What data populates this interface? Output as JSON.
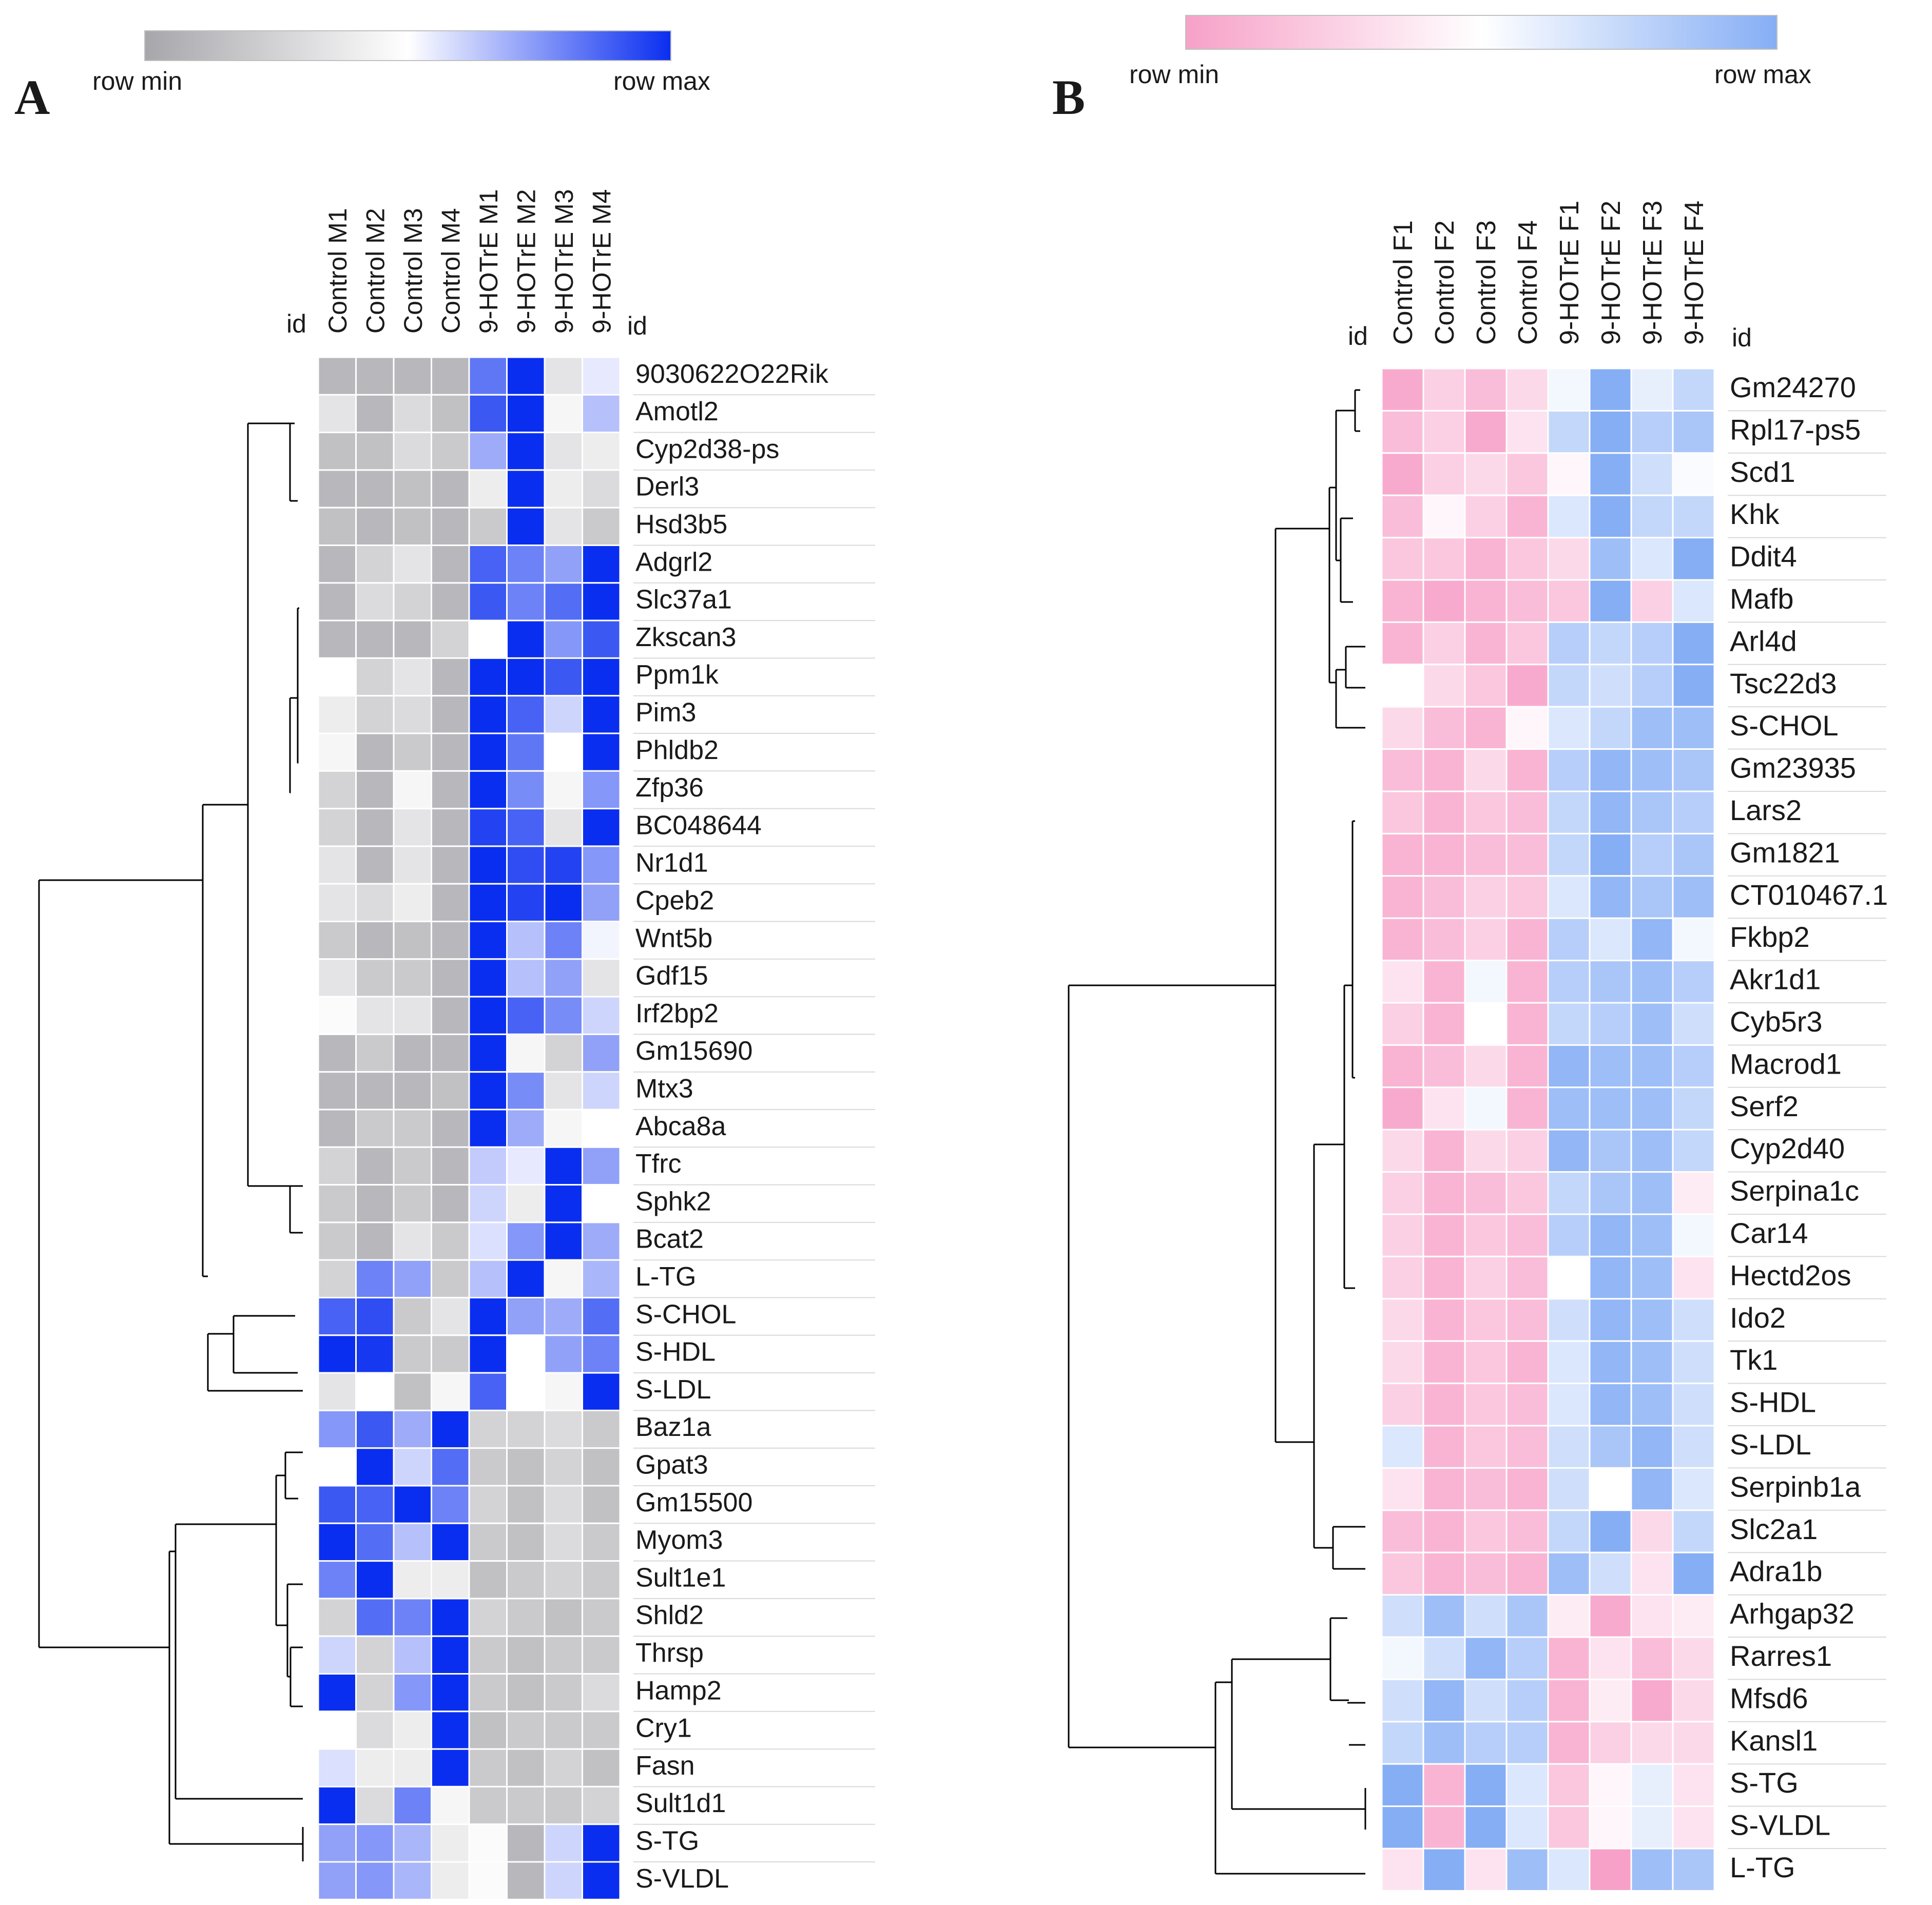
{
  "chart_data": [
    {
      "type": "heatmap",
      "panel": "A",
      "title": "",
      "color_scale": {
        "min_color": "#a6a6ab",
        "mid_color": "#ffffff",
        "max_color": "#0a2ef0",
        "min_label": "row min",
        "max_label": "row max"
      },
      "id_label": "id",
      "columns": [
        "Control M1",
        "Control M2",
        "Control M3",
        "Control M4",
        "9-HOTrE M1",
        "9-HOTrE M2",
        "9-HOTrE M3",
        "9-HOTrE M4"
      ],
      "rows": [
        "9030622O22Rik",
        "Amotl2",
        "Cyp2d38-ps",
        "Derl3",
        "Hsd3b5",
        "Adgrl2",
        "Slc37a1",
        "Zkscan3",
        "Ppm1k",
        "Pim3",
        "Phldb2",
        "Zfp36",
        "BC048644",
        "Nr1d1",
        "Cpeb2",
        "Wnt5b",
        "Gdf15",
        "Irf2bp2",
        "Gm15690",
        "Mtx3",
        "Abca8a",
        "Tfrc",
        "Sphk2",
        "Bcat2",
        "L-TG",
        "S-CHOL",
        "S-HDL",
        "S-LDL",
        "Baz1a",
        "Gpat3",
        "Gm15500",
        "Myom3",
        "Sult1e1",
        "Shld2",
        "Thrsp",
        "Hamp2",
        "Cry1",
        "Fasn",
        "Sult1d1",
        "S-TG",
        "S-VLDL"
      ],
      "values": [
        [
          -0.8,
          -0.8,
          -0.8,
          -0.8,
          0.65,
          1,
          -0.3,
          0.1
        ],
        [
          -0.3,
          -0.8,
          -0.4,
          -0.7,
          0.8,
          1,
          -0.1,
          0.3
        ],
        [
          -0.7,
          -0.7,
          -0.4,
          -0.6,
          0.4,
          1,
          -0.3,
          -0.2
        ],
        [
          -0.8,
          -0.8,
          -0.7,
          -0.8,
          -0.2,
          1,
          -0.2,
          -0.4
        ],
        [
          -0.7,
          -0.8,
          -0.7,
          -0.8,
          -0.6,
          1,
          -0.3,
          -0.6
        ],
        [
          -0.8,
          -0.5,
          -0.3,
          -0.8,
          0.75,
          0.6,
          0.45,
          1
        ],
        [
          -0.8,
          -0.4,
          -0.5,
          -0.8,
          0.8,
          0.6,
          0.7,
          1
        ],
        [
          -0.8,
          -0.8,
          -0.8,
          -0.5,
          0,
          1,
          0.5,
          0.8
        ],
        [
          0,
          -0.5,
          -0.3,
          -0.8,
          1,
          1,
          0.8,
          1
        ],
        [
          -0.2,
          -0.5,
          -0.4,
          -0.8,
          1,
          0.75,
          0.2,
          1
        ],
        [
          -0.1,
          -0.8,
          -0.6,
          -0.8,
          1,
          0.65,
          0,
          1
        ],
        [
          -0.5,
          -0.8,
          -0.1,
          -0.8,
          1,
          0.55,
          -0.1,
          0.5
        ],
        [
          -0.5,
          -0.8,
          -0.3,
          -0.8,
          0.9,
          0.75,
          -0.3,
          1
        ],
        [
          -0.3,
          -0.8,
          -0.3,
          -0.8,
          1,
          0.85,
          0.9,
          0.5
        ],
        [
          -0.3,
          -0.4,
          -0.2,
          -0.8,
          1,
          0.9,
          1,
          0.45
        ],
        [
          -0.6,
          -0.8,
          -0.7,
          -0.8,
          1,
          0.3,
          0.6,
          0.05
        ],
        [
          -0.3,
          -0.6,
          -0.6,
          -0.8,
          1,
          0.3,
          0.45,
          -0.3
        ],
        [
          -0.05,
          -0.3,
          -0.3,
          -0.8,
          1,
          0.75,
          0.55,
          0.2
        ],
        [
          -0.8,
          -0.6,
          -0.8,
          -0.8,
          1,
          -0.1,
          -0.5,
          0.45
        ],
        [
          -0.8,
          -0.8,
          -0.8,
          -0.7,
          1,
          0.55,
          -0.3,
          0.2
        ],
        [
          -0.8,
          -0.6,
          -0.6,
          -0.8,
          1,
          0.4,
          -0.1,
          0
        ],
        [
          -0.5,
          -0.8,
          -0.6,
          -0.8,
          0.25,
          0.1,
          1,
          0.45
        ],
        [
          -0.6,
          -0.8,
          -0.6,
          -0.8,
          0.2,
          -0.2,
          1,
          0
        ],
        [
          -0.6,
          -0.8,
          -0.3,
          -0.6,
          0.15,
          0.5,
          1,
          0.4
        ],
        [
          -0.5,
          0.6,
          0.45,
          -0.6,
          0.3,
          1,
          -0.1,
          0.35
        ],
        [
          0.75,
          0.85,
          -0.6,
          -0.3,
          1,
          0.45,
          0.4,
          0.7
        ],
        [
          1,
          0.95,
          -0.6,
          -0.6,
          1,
          0,
          0.45,
          0.6
        ],
        [
          -0.3,
          0,
          -0.7,
          -0.1,
          0.75,
          0,
          -0.1,
          1
        ],
        [
          0.5,
          0.8,
          0.4,
          1,
          -0.5,
          -0.5,
          -0.4,
          -0.6
        ],
        [
          0,
          1,
          0.2,
          0.7,
          -0.6,
          -0.7,
          -0.5,
          -0.7
        ],
        [
          0.8,
          0.75,
          1,
          0.6,
          -0.5,
          -0.7,
          -0.4,
          -0.7
        ],
        [
          1,
          0.7,
          0.3,
          1,
          -0.6,
          -0.7,
          -0.4,
          -0.6
        ],
        [
          0.6,
          1,
          -0.2,
          -0.2,
          -0.7,
          -0.6,
          -0.5,
          -0.6
        ],
        [
          -0.5,
          0.7,
          0.6,
          1,
          -0.5,
          -0.6,
          -0.7,
          -0.6
        ],
        [
          0.2,
          -0.5,
          0.3,
          1,
          -0.6,
          -0.7,
          -0.6,
          -0.6
        ],
        [
          1,
          -0.5,
          0.5,
          1,
          -0.6,
          -0.7,
          -0.6,
          -0.4
        ],
        [
          0,
          -0.4,
          -0.2,
          1,
          -0.7,
          -0.6,
          -0.6,
          -0.6
        ],
        [
          0.15,
          -0.2,
          -0.2,
          1,
          -0.6,
          -0.7,
          -0.5,
          -0.7
        ],
        [
          1,
          -0.4,
          0.6,
          -0.1,
          -0.6,
          -0.6,
          -0.6,
          -0.5
        ],
        [
          0.45,
          0.5,
          0.35,
          -0.2,
          -0.05,
          -0.8,
          0.2,
          1
        ],
        [
          0.45,
          0.5,
          0.35,
          -0.2,
          -0.05,
          -0.8,
          0.2,
          1
        ]
      ]
    },
    {
      "type": "heatmap",
      "panel": "B",
      "title": "",
      "color_scale": {
        "min_color": "#f7a1c8",
        "mid_color": "#ffffff",
        "max_color": "#86aef5",
        "min_label": "row min",
        "max_label": "row max"
      },
      "id_label": "id",
      "columns": [
        "Control F1",
        "Control F2",
        "Control F3",
        "Control F4",
        "9-HOTrE F1",
        "9-HOTrE F2",
        "9-HOTrE F3",
        "9-HOTrE F4"
      ],
      "rows": [
        "Gm24270",
        "Rpl17-ps5",
        "Scd1",
        "Khk",
        "Ddit4",
        "Mafb",
        "Arl4d",
        "Tsc22d3",
        "S-CHOL",
        "Gm23935",
        "Lars2",
        "Gm1821",
        "CT010467.1",
        "Fkbp2",
        "Akr1d1",
        "Cyb5r3",
        "Macrod1",
        "Serf2",
        "Cyp2d40",
        "Serpina1c",
        "Car14",
        "Hectd2os",
        "Ido2",
        "Tk1",
        "S-HDL",
        "S-LDL",
        "Serpinb1a",
        "Slc2a1",
        "Adra1b",
        "Arhgap32",
        "Rarres1",
        "Mfsd6",
        "Kansl1",
        "S-TG",
        "S-VLDL",
        "L-TG"
      ],
      "values": [
        [
          -0.9,
          -0.5,
          -0.7,
          -0.4,
          0.1,
          1,
          0.2,
          0.5
        ],
        [
          -0.7,
          -0.5,
          -0.9,
          -0.3,
          0.5,
          1,
          0.6,
          0.7
        ],
        [
          -0.9,
          -0.5,
          -0.4,
          -0.6,
          -0.1,
          1,
          0.4,
          0.05
        ],
        [
          -0.7,
          -0.1,
          -0.5,
          -0.8,
          0.3,
          1,
          0.5,
          0.5
        ],
        [
          -0.6,
          -0.6,
          -0.8,
          -0.6,
          -0.4,
          0.8,
          0.3,
          1
        ],
        [
          -0.8,
          -0.9,
          -0.8,
          -0.7,
          -0.6,
          1,
          -0.5,
          0.3
        ],
        [
          -0.8,
          -0.5,
          -0.8,
          -0.6,
          0.6,
          0.5,
          0.6,
          1
        ],
        [
          0,
          -0.4,
          -0.6,
          -0.9,
          0.5,
          0.4,
          0.6,
          1
        ],
        [
          -0.4,
          -0.7,
          -0.8,
          -0.1,
          0.3,
          0.5,
          0.8,
          0.8
        ],
        [
          -0.7,
          -0.8,
          -0.4,
          -0.8,
          0.6,
          0.9,
          0.8,
          0.7
        ],
        [
          -0.6,
          -0.8,
          -0.6,
          -0.7,
          0.5,
          0.9,
          0.7,
          0.6
        ],
        [
          -0.8,
          -0.8,
          -0.7,
          -0.7,
          0.5,
          1,
          0.6,
          0.7
        ],
        [
          -0.8,
          -0.7,
          -0.5,
          -0.6,
          0.3,
          0.9,
          0.7,
          0.8
        ],
        [
          -0.8,
          -0.7,
          -0.5,
          -0.8,
          0.6,
          0.3,
          0.9,
          0.1
        ],
        [
          -0.3,
          -0.8,
          0.1,
          -0.8,
          0.6,
          0.7,
          0.8,
          0.6
        ],
        [
          -0.5,
          -0.8,
          0,
          -0.8,
          0.5,
          0.6,
          0.8,
          0.4
        ],
        [
          -0.8,
          -0.7,
          -0.4,
          -0.8,
          0.9,
          0.8,
          0.8,
          0.6
        ],
        [
          -0.9,
          -0.3,
          0.1,
          -0.8,
          0.8,
          0.8,
          0.8,
          0.5
        ],
        [
          -0.4,
          -0.8,
          -0.4,
          -0.5,
          0.9,
          0.7,
          0.8,
          0.5
        ],
        [
          -0.5,
          -0.8,
          -0.7,
          -0.6,
          0.5,
          0.7,
          0.8,
          -0.2
        ],
        [
          -0.5,
          -0.8,
          -0.6,
          -0.7,
          0.6,
          0.9,
          0.8,
          0.1
        ],
        [
          -0.5,
          -0.8,
          -0.5,
          -0.7,
          0,
          0.9,
          0.8,
          -0.3
        ],
        [
          -0.4,
          -0.8,
          -0.6,
          -0.7,
          0.4,
          0.9,
          0.8,
          0.4
        ],
        [
          -0.4,
          -0.8,
          -0.6,
          -0.8,
          0.3,
          0.9,
          0.8,
          0.4
        ],
        [
          -0.5,
          -0.8,
          -0.6,
          -0.7,
          0.3,
          0.9,
          0.8,
          0.4
        ],
        [
          0.3,
          -0.8,
          -0.6,
          -0.7,
          0.4,
          0.7,
          0.9,
          0.4
        ],
        [
          -0.3,
          -0.8,
          -0.7,
          -0.8,
          0.4,
          0,
          0.9,
          0.3
        ],
        [
          -0.7,
          -0.8,
          -0.6,
          -0.7,
          0.5,
          1,
          -0.4,
          0.5
        ],
        [
          -0.6,
          -0.8,
          -0.7,
          -0.8,
          0.8,
          0.4,
          -0.3,
          1
        ],
        [
          0.4,
          0.8,
          0.4,
          0.7,
          -0.2,
          -0.9,
          -0.3,
          -0.2
        ],
        [
          0.1,
          0.4,
          0.9,
          0.6,
          -0.8,
          -0.3,
          -0.7,
          -0.4
        ],
        [
          0.4,
          0.9,
          0.4,
          0.6,
          -0.8,
          -0.2,
          -0.9,
          -0.4
        ],
        [
          0.5,
          0.8,
          0.6,
          0.6,
          -0.8,
          -0.5,
          -0.4,
          -0.4
        ],
        [
          1,
          -0.8,
          1,
          0.3,
          -0.6,
          -0.1,
          0.2,
          -0.3
        ],
        [
          1,
          -0.8,
          1,
          0.3,
          -0.6,
          -0.1,
          0.2,
          -0.3
        ],
        [
          -0.3,
          1,
          -0.3,
          0.8,
          0.3,
          -1,
          0.8,
          0.7
        ]
      ]
    }
  ]
}
